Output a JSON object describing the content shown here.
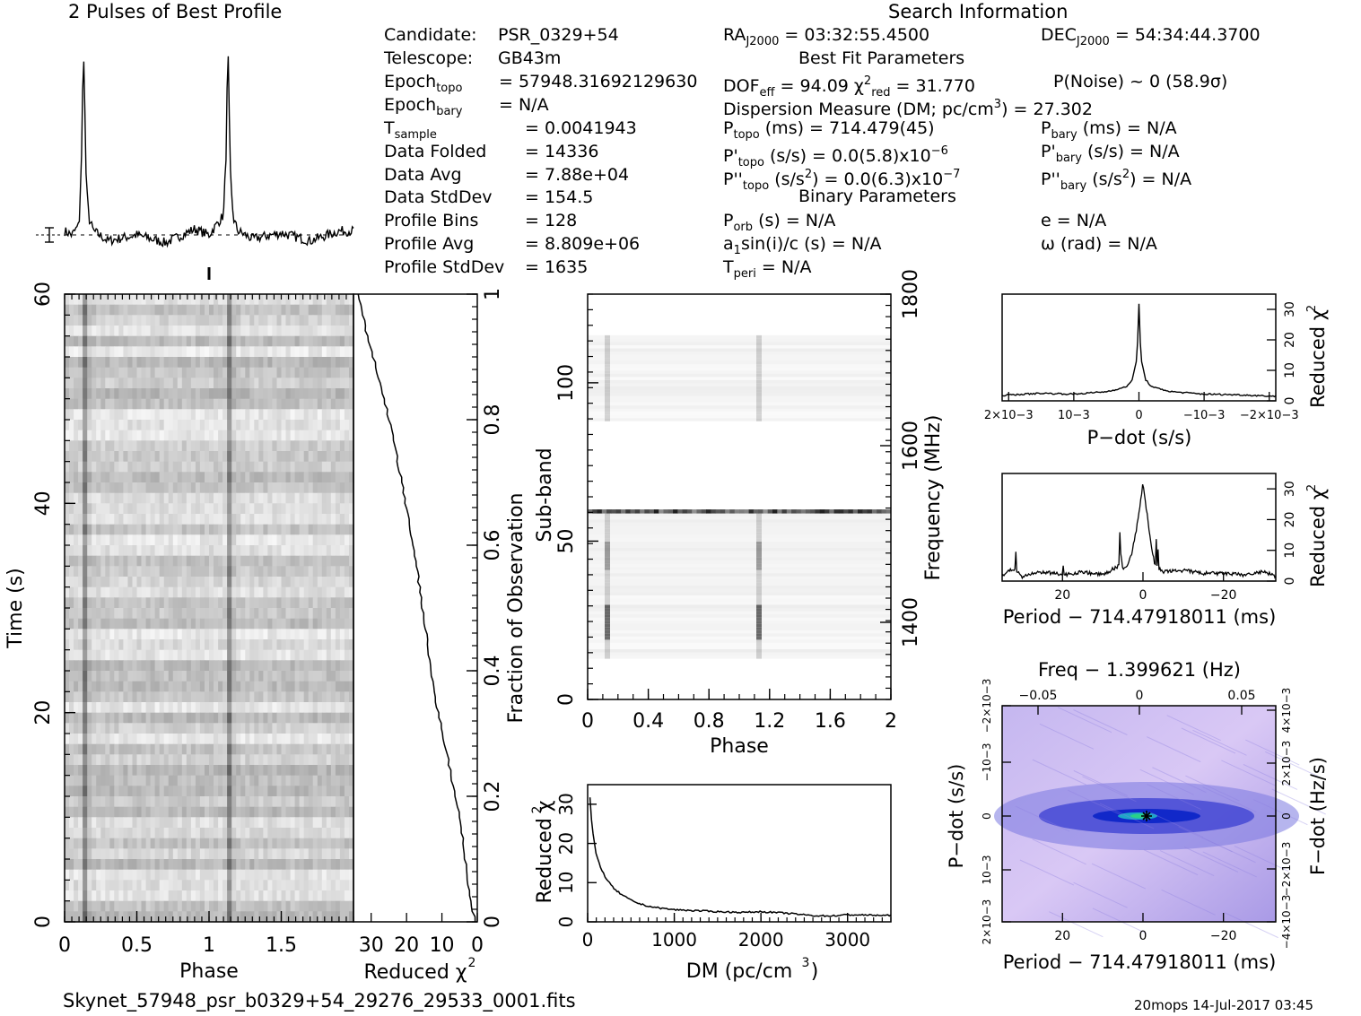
{
  "header": {
    "profile_title": "2 Pulses of Best Profile",
    "search_title": "Search Information",
    "best_fit_title": "Best Fit Parameters",
    "binary_title": "Binary Parameters"
  },
  "candidate_info": [
    {
      "label": "Candidate:",
      "value": "PSR_0329+54"
    },
    {
      "label": "Telescope:",
      "value": "GB43m"
    },
    {
      "label": "Epoch",
      "sub": "topo",
      "value": "= 57948.31692129630"
    },
    {
      "label": "Epoch",
      "sub": "bary",
      "value": "= N/A"
    },
    {
      "label": "T",
      "sub": "sample",
      "value": "=   0.0041943"
    },
    {
      "label": "Data Folded",
      "value": "=   14336"
    },
    {
      "label": "Data Avg",
      "value": "=   7.88e+04"
    },
    {
      "label": "Data StdDev",
      "value": "=   154.5"
    },
    {
      "label": "Profile Bins",
      "value": "=   128"
    },
    {
      "label": "Profile Avg",
      "value": "=   8.809e+06"
    },
    {
      "label": "Profile StdDev",
      "value": "=   1635"
    }
  ],
  "search_info": {
    "ra": {
      "label": "RA",
      "sub": "J2000",
      "value": "= 03:32:55.4500"
    },
    "dec": {
      "label": "DEC",
      "sub": "J2000",
      "value": "= 54:34:44.3700"
    },
    "dof": {
      "label": "DOF",
      "sub": "eff",
      "value": "= 94.09"
    },
    "chi2": {
      "label": "χ",
      "sup": "2",
      "sub": "red",
      "value": "= 31.770"
    },
    "pnoise": "P(Noise) ~ 0    (58.9σ)",
    "dm_line": {
      "text": "Dispersion Measure (DM; pc/cm",
      "sup": "3",
      "value": ") = 27.302"
    },
    "ptopo": {
      "label": "P",
      "sub": "topo",
      "value": "(ms) =   714.479(45)"
    },
    "pbary": {
      "label": "P",
      "sub": "bary",
      "value": "(ms) = N/A"
    },
    "pdtopo": {
      "label": "P'",
      "sub": "topo",
      "value": "(s/s) = 0.0(5.8)x10",
      "sup": "−6"
    },
    "pdbary": {
      "label": "P'",
      "sub": "bary",
      "value": "(s/s) = N/A"
    },
    "pddtopo": {
      "label": "P''",
      "sub": "topo",
      "value": "(s/s",
      "sup": "2",
      "value2": ") = 0.0(6.3)x10",
      "sup2": "−7"
    },
    "pddbary": {
      "label": "P''",
      "sub": "bary",
      "value": "(s/s",
      "sup": "2",
      "value2": ") = N/A"
    },
    "porb": {
      "label": "P",
      "sub": "orb",
      "value": "(s) = N/A"
    },
    "ecc": "e = N/A",
    "a1": {
      "label": "a",
      "sub": "1",
      "value": "sin(i)/c (s) = N/A"
    },
    "omega": "ω (rad) = N/A",
    "tperi": {
      "label": "T",
      "sub": "peri",
      "value": "= N/A"
    }
  },
  "footer": {
    "filename": "Skynet_57948_psr_b0329+54_29276_29533_0001.fits",
    "stamp": "20mops 14-Jul-2017 03:45"
  },
  "colors": {
    "ink": "#000000",
    "ppdot_bg": "#d9c8f5",
    "ppdot_core": "#0a23c8",
    "ppdot_peak": "#29d08a"
  },
  "chart_data": [
    {
      "type": "line",
      "id": "profile",
      "title": "2 Pulses of Best Profile",
      "xlabel": "",
      "ylabel": "",
      "x": [
        0,
        0.05,
        0.1,
        0.12,
        0.13,
        0.14,
        0.15,
        0.17,
        0.2,
        0.3,
        0.5,
        0.7,
        0.9,
        1.0,
        1.05,
        1.1,
        1.12,
        1.13,
        1.14,
        1.15,
        1.17,
        1.2,
        1.3,
        1.5,
        1.7,
        1.9,
        2.0
      ],
      "values": [
        0.02,
        0.0,
        0.05,
        0.45,
        1.0,
        0.65,
        0.25,
        0.08,
        0.02,
        -0.03,
        0.0,
        -0.04,
        0.03,
        0.0,
        0.05,
        0.1,
        0.45,
        1.0,
        0.6,
        0.25,
        0.08,
        0.02,
        -0.02,
        0.01,
        -0.03,
        0.02,
        0.02
      ]
    },
    {
      "type": "heatmap",
      "id": "time-phase",
      "xlabel": "Phase",
      "ylabel": "Time (s)",
      "xlim": [
        0,
        2
      ],
      "ylim": [
        0,
        60
      ],
      "xticks": [
        "0",
        "0.5",
        "1",
        "1.5"
      ],
      "yticks": [
        "0",
        "20",
        "40",
        "60"
      ],
      "pulse_phases": [
        0.13,
        1.13
      ]
    },
    {
      "type": "line",
      "id": "time-chi2",
      "xlabel": "Reduced χ2",
      "ylabel": "Fraction of Observation",
      "xlim": [
        35,
        0
      ],
      "ylim": [
        0,
        1
      ],
      "xticks": [
        "30",
        "20",
        "10",
        "0"
      ],
      "yticks": [
        "0",
        "0.2",
        "0.4",
        "0.6",
        "0.8",
        "1"
      ],
      "x": [
        0.5,
        1,
        2,
        3,
        4,
        5,
        7,
        9,
        11,
        13,
        15,
        17,
        19,
        21,
        23,
        25,
        27,
        29,
        31,
        32.5,
        33.5
      ],
      "y": [
        0.0,
        0.01,
        0.04,
        0.08,
        0.13,
        0.17,
        0.22,
        0.28,
        0.33,
        0.4,
        0.48,
        0.56,
        0.63,
        0.69,
        0.75,
        0.8,
        0.85,
        0.89,
        0.93,
        0.97,
        1.0
      ]
    },
    {
      "type": "heatmap",
      "id": "subband-phase",
      "xlabel": "Phase",
      "ylabel": "Sub-band",
      "y2label": "Frequency (MHz)",
      "xlim": [
        0,
        2
      ],
      "ylim": [
        0,
        128
      ],
      "xticks": [
        "0",
        "0.4",
        "0.8",
        "1.2",
        "1.6",
        "2"
      ],
      "yticks": [
        "0",
        "50",
        "100"
      ],
      "y2ticks": [
        "1400",
        "1600",
        "1800"
      ],
      "pulse_phases": [
        0.13,
        1.13
      ],
      "rfi_subband": 59
    },
    {
      "type": "line",
      "id": "dm-chi2",
      "xlabel": "DM (pc/cm3)",
      "ylabel": "Reduced χ2",
      "xlim": [
        0,
        3500
      ],
      "ylim": [
        0,
        35
      ],
      "xticks": [
        "0",
        "1000",
        "2000",
        "3000"
      ],
      "yticks": [
        "0",
        "10",
        "20",
        "30"
      ],
      "x": [
        27,
        50,
        100,
        150,
        200,
        300,
        400,
        500,
        600,
        700,
        800,
        1000,
        1200,
        1500,
        1800,
        2000,
        2300,
        2600,
        2800,
        3000,
        3300,
        3500
      ],
      "y": [
        31.8,
        24,
        17,
        14,
        11.5,
        8.5,
        6.8,
        5.5,
        4.6,
        4.0,
        3.6,
        3.1,
        2.9,
        2.6,
        2.4,
        2.6,
        2.2,
        1.6,
        1.5,
        1.8,
        1.7,
        1.6
      ]
    },
    {
      "type": "line",
      "id": "pdot-chi2",
      "xlabel": "P−dot (s/s)",
      "ylabel": "Reduced χ2",
      "xlim": [
        0.0021,
        -0.0021
      ],
      "ylim": [
        0,
        35
      ],
      "xticks": [
        "2×10−3",
        "10−3",
        "0",
        "−10−3",
        "−2×10−3"
      ],
      "yticks": [
        "0",
        "10",
        "20",
        "30"
      ],
      "x": [
        0.0021,
        0.0015,
        0.001,
        0.0005,
        0.0002,
        0.0001,
        3e-05,
        0,
        -3e-05,
        -0.0001,
        -0.0002,
        -0.0005,
        -0.001,
        -0.0015,
        -0.0021
      ],
      "y": [
        1.8,
        2.5,
        2.2,
        3.0,
        4.5,
        7,
        14,
        31.8,
        14,
        7,
        4.5,
        3.0,
        2.2,
        2.0,
        1.5
      ]
    },
    {
      "type": "line",
      "id": "period-chi2",
      "xlabel": "Period − 714.47918011 (ms)",
      "ylabel": "Reduced χ2",
      "xlim": [
        35,
        -33
      ],
      "ylim": [
        0,
        35
      ],
      "xticks": [
        "20",
        "0",
        "−20"
      ],
      "yticks": [
        "0",
        "10",
        "20",
        "30"
      ],
      "x": [
        35,
        32,
        30,
        25,
        20,
        15,
        10,
        6,
        5.5,
        5,
        4,
        3,
        2,
        1,
        0,
        -1,
        -2,
        -3,
        -5,
        -10,
        -15,
        -20,
        -25,
        -30,
        -33
      ],
      "y": [
        2,
        4,
        1.5,
        3,
        2,
        3,
        2,
        5,
        9,
        4,
        5,
        8,
        14,
        22,
        31.8,
        22,
        12,
        5,
        3,
        3.5,
        2.5,
        2.5,
        2,
        3,
        1.5
      ]
    },
    {
      "type": "heatmap",
      "id": "period-pdot",
      "title": "Freq − 1.399621 (Hz)",
      "xlabel": "Period − 714.47918011 (ms)",
      "ylabel": "P−dot (s/s)",
      "y2label": "F−dot (Hz/s)",
      "xlim": [
        35,
        -33
      ],
      "xticks": [
        "20",
        "0",
        "−20"
      ],
      "x2ticks": [
        "−0.05",
        "0",
        "0.05"
      ],
      "yticks": [
        "2×10−3",
        "10−3",
        "0",
        "−10−3",
        "−2×10−3"
      ],
      "y2ticks": [
        "−4×10−3",
        "−2×10−3",
        "0",
        "2×10−3",
        "4×10−3"
      ]
    }
  ]
}
